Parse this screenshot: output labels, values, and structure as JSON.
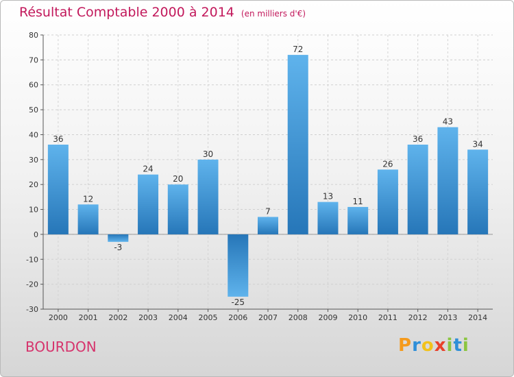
{
  "header": {
    "title": "Résultat Comptable 2000 à 2014",
    "subtitle": "(en milliers d'€)"
  },
  "footer": {
    "commune": "BOURDON",
    "logo_letters": [
      "P",
      "r",
      "o",
      "x",
      "i",
      "t",
      "i"
    ],
    "logo_colors": [
      "#f59a1b",
      "#2f8fd8",
      "#f2c21b",
      "#e8422c",
      "#8bc540",
      "#2f8fd8",
      "#8bc540"
    ]
  },
  "colors": {
    "bar_light": "#5fb3ec",
    "bar_dark": "#2676b8",
    "title": "#c2185b"
  },
  "chart_data": {
    "type": "bar",
    "title": "Résultat Comptable 2000 à 2014",
    "subtitle": "(en milliers d'€)",
    "xlabel": "",
    "ylabel": "",
    "categories": [
      "2000",
      "2001",
      "2002",
      "2003",
      "2004",
      "2005",
      "2006",
      "2007",
      "2008",
      "2009",
      "2010",
      "2011",
      "2012",
      "2013",
      "2014"
    ],
    "values": [
      36,
      12,
      -3,
      24,
      20,
      30,
      -25,
      7,
      72,
      13,
      11,
      26,
      36,
      43,
      34
    ],
    "value_labels": [
      "36",
      "12",
      "-3",
      "24",
      "20",
      "30",
      "-25",
      "7",
      "72",
      "13",
      "11",
      "26",
      "36",
      "43",
      "34"
    ],
    "ylim": [
      -30,
      80
    ],
    "yticks": [
      -30,
      -20,
      -10,
      0,
      10,
      20,
      30,
      40,
      50,
      60,
      70,
      80
    ],
    "grid": true
  }
}
